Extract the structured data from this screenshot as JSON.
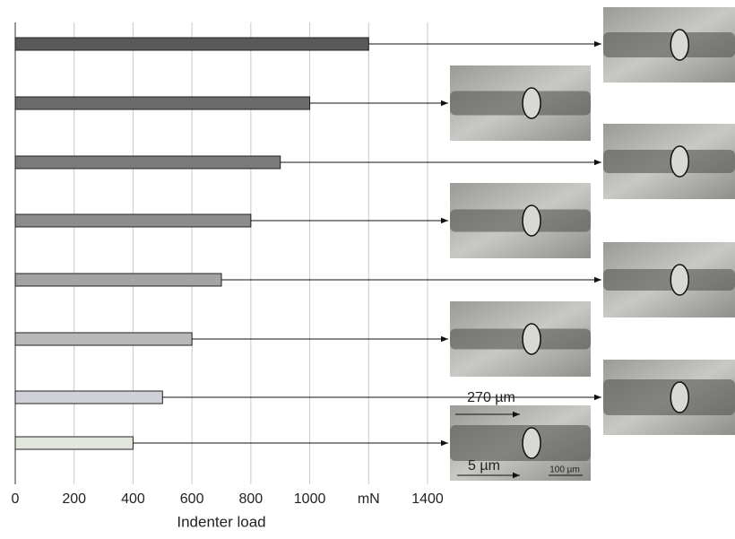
{
  "chart_data": {
    "type": "bar",
    "orientation": "horizontal",
    "values": [
      1200,
      1000,
      900,
      800,
      700,
      600,
      500,
      400
    ],
    "colors": [
      "#595959",
      "#6b6b6b",
      "#7a7a7a",
      "#8c8c8c",
      "#a3a3a3",
      "#b8b8b8",
      "#d0d0d8",
      "#e2e6dc"
    ],
    "xlim": [
      0,
      1400
    ],
    "xticks": [
      0,
      200,
      400,
      600,
      800,
      1000,
      {
        "value": 1200,
        "label": "mN"
      },
      1400
    ],
    "xlabel": "Indenter load",
    "grid": true,
    "annotations": [
      "270 µm",
      "5 µm",
      "100 µm"
    ]
  }
}
